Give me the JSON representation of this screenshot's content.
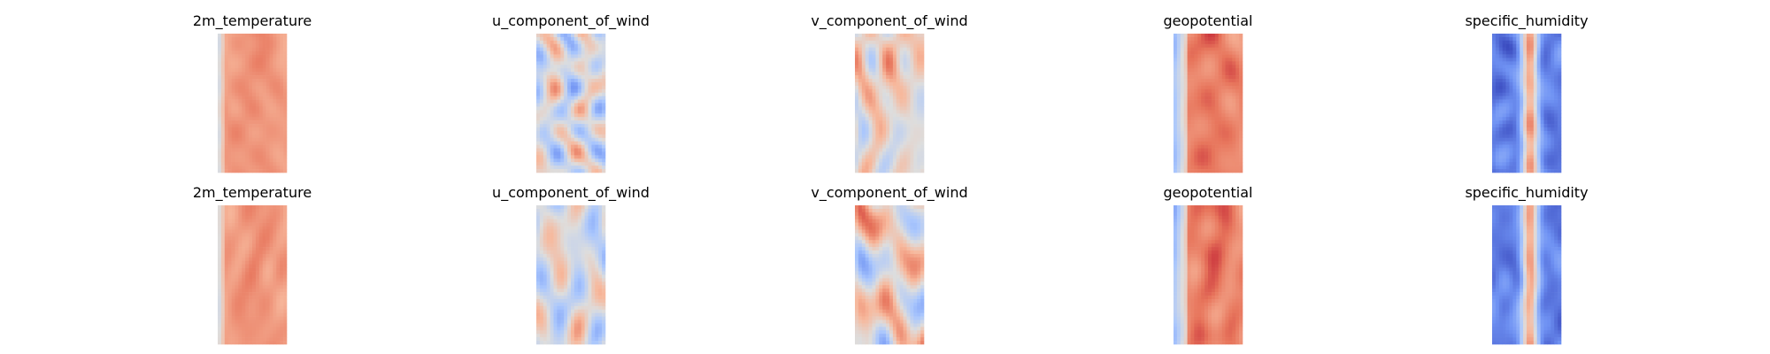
{
  "figure": {
    "colormap": "coolwarm",
    "colormap_stops": [
      "#3b4cc0",
      "#6f92f3",
      "#aac7fd",
      "#dddddd",
      "#f7b89c",
      "#e7745b",
      "#b40426"
    ],
    "axes": "off"
  },
  "chart_data": {
    "type": "heatmap",
    "rows": 2,
    "columns": 5,
    "panels": [
      {
        "row": 0,
        "col": 0,
        "title": "2m_temperature",
        "style": "temperature"
      },
      {
        "row": 0,
        "col": 1,
        "title": "u_component_of_wind",
        "style": "wind_u"
      },
      {
        "row": 0,
        "col": 2,
        "title": "v_component_of_wind",
        "style": "wind_v"
      },
      {
        "row": 0,
        "col": 3,
        "title": "geopotential",
        "style": "geopotential"
      },
      {
        "row": 0,
        "col": 4,
        "title": "specific_humidity",
        "style": "humidity"
      },
      {
        "row": 1,
        "col": 0,
        "title": "2m_temperature",
        "style": "temperature"
      },
      {
        "row": 1,
        "col": 1,
        "title": "u_component_of_wind",
        "style": "wind_u"
      },
      {
        "row": 1,
        "col": 2,
        "title": "v_component_of_wind",
        "style": "wind_v"
      },
      {
        "row": 1,
        "col": 3,
        "title": "geopotential",
        "style": "geopotential"
      },
      {
        "row": 1,
        "col": 4,
        "title": "specific_humidity",
        "style": "humidity"
      }
    ]
  }
}
